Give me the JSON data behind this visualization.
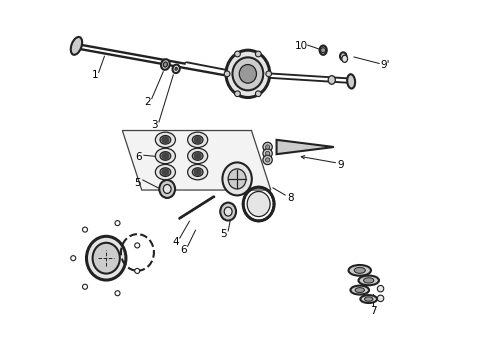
{
  "bg_color": "#ffffff",
  "fig_width": 4.9,
  "fig_height": 3.6,
  "dpi": 100,
  "line_color": "#222222",
  "fill_light": "#e5e5e5",
  "fill_mid": "#cccccc",
  "fill_dark": "#999999",
  "label_fontsize": 7.5
}
